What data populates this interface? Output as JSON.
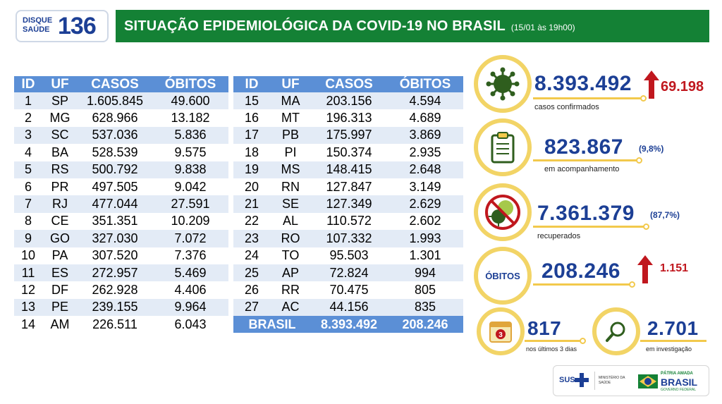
{
  "header": {
    "logo_line1": "DISQUE",
    "logo_line2": "SAÚDE",
    "logo_number": "136",
    "title": "SITUAÇÃO EPIDEMIOLÓGICA DA COVID-19 NO BRASIL",
    "date": "(15/01 às 19h00)"
  },
  "table_headers": [
    "ID",
    "UF",
    "CASOS",
    "ÓBITOS"
  ],
  "table_left": [
    [
      "1",
      "SP",
      "1.605.845",
      "49.600"
    ],
    [
      "2",
      "MG",
      "628.966",
      "13.182"
    ],
    [
      "3",
      "SC",
      "537.036",
      "5.836"
    ],
    [
      "4",
      "BA",
      "528.539",
      "9.575"
    ],
    [
      "5",
      "RS",
      "500.792",
      "9.838"
    ],
    [
      "6",
      "PR",
      "497.505",
      "9.042"
    ],
    [
      "7",
      "RJ",
      "477.044",
      "27.591"
    ],
    [
      "8",
      "CE",
      "351.351",
      "10.209"
    ],
    [
      "9",
      "GO",
      "327.030",
      "7.072"
    ],
    [
      "10",
      "PA",
      "307.520",
      "7.376"
    ],
    [
      "11",
      "ES",
      "272.957",
      "5.469"
    ],
    [
      "12",
      "DF",
      "262.928",
      "4.406"
    ],
    [
      "13",
      "PE",
      "239.155",
      "9.964"
    ],
    [
      "14",
      "AM",
      "226.511",
      "6.043"
    ]
  ],
  "table_right": [
    [
      "15",
      "MA",
      "203.156",
      "4.594"
    ],
    [
      "16",
      "MT",
      "196.313",
      "4.689"
    ],
    [
      "17",
      "PB",
      "175.997",
      "3.869"
    ],
    [
      "18",
      "PI",
      "150.374",
      "2.935"
    ],
    [
      "19",
      "MS",
      "148.415",
      "2.648"
    ],
    [
      "20",
      "RN",
      "127.847",
      "3.149"
    ],
    [
      "21",
      "SE",
      "127.349",
      "2.629"
    ],
    [
      "22",
      "AL",
      "110.572",
      "2.602"
    ],
    [
      "23",
      "RO",
      "107.332",
      "1.993"
    ],
    [
      "24",
      "TO",
      "95.503",
      "1.301"
    ],
    [
      "25",
      "AP",
      "72.824",
      "994"
    ],
    [
      "26",
      "RR",
      "70.475",
      "805"
    ],
    [
      "27",
      "AC",
      "44.156",
      "835"
    ]
  ],
  "total": {
    "label": "BRASIL",
    "casos": "8.393.492",
    "obitos": "208.246"
  },
  "stats": {
    "confirmed": {
      "value": "8.393.492",
      "increase": "69.198",
      "label": "casos confirmados"
    },
    "monitoring": {
      "value": "823.867",
      "pct": "(9,8%)",
      "label": "em acompanhamento"
    },
    "recovered": {
      "value": "7.361.379",
      "pct": "(87,7%)",
      "label": "recuperados"
    },
    "deaths": {
      "badge": "ÓBITOS",
      "value": "208.246",
      "increase": "1.151"
    },
    "last3": {
      "value": "817",
      "label": "nos últimos 3 dias",
      "calendar": "3"
    },
    "investigation": {
      "value": "2.701",
      "label": "em investigação"
    }
  },
  "footer": {
    "sus": "SUS",
    "ministry": "MINISTÉRIO DA SAÚDE",
    "gov1": "PÁTRIA AMADA",
    "gov2": "BRASIL",
    "gov3": "GOVERNO FEDERAL"
  },
  "colors": {
    "green": "#148135",
    "blue": "#1c3f95",
    "header_blue": "#5b8fd6",
    "row_alt": "#e3ebf6",
    "ring": "#f2d466",
    "red": "#c0171e"
  },
  "icons": [
    "virus-icon",
    "clipboard-icon",
    "crossed-virus-icon",
    "calendar-icon",
    "magnifier-icon",
    "up-arrow-icon"
  ]
}
